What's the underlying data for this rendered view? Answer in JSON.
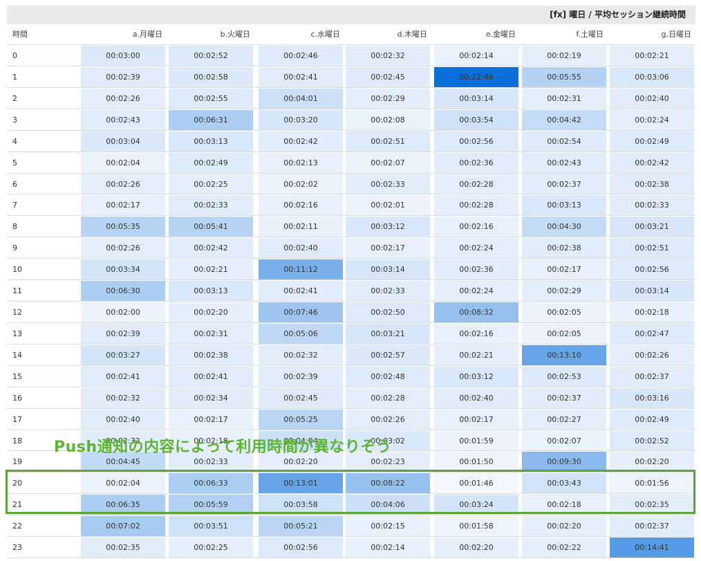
{
  "title": "[fx] 曜日 / 平均セッション継続時間",
  "annotation": "Push通知の内容によって利用時間が異なりそう",
  "colors": {
    "max": "#0a6fd9",
    "min": "#f3f7fd",
    "grid": "#dcdcdc",
    "annotation": "#5ba33a"
  },
  "chart_data": {
    "type": "heatmap",
    "row_header": "時間",
    "columns": [
      "a.月曜日",
      "b.火曜日",
      "c.水曜日",
      "d.木曜日",
      "e.金曜日",
      "f.土曜日",
      "g.日曜日"
    ],
    "rows": [
      {
        "hour": "0",
        "values": [
          "00:03:00",
          "00:02:52",
          "00:02:46",
          "00:02:32",
          "00:02:14",
          "00:02:19",
          "00:02:21"
        ]
      },
      {
        "hour": "1",
        "values": [
          "00:02:39",
          "00:02:58",
          "00:02:41",
          "00:02:45",
          "00:22:46",
          "00:05:55",
          "00:03:06"
        ]
      },
      {
        "hour": "2",
        "values": [
          "00:02:26",
          "00:02:55",
          "00:04:01",
          "00:02:29",
          "00:03:14",
          "00:02:31",
          "00:02:40"
        ]
      },
      {
        "hour": "3",
        "values": [
          "00:02:43",
          "00:06:31",
          "00:03:20",
          "00:02:08",
          "00:03:54",
          "00:04:42",
          "00:02:24"
        ]
      },
      {
        "hour": "4",
        "values": [
          "00:03:04",
          "00:03:13",
          "00:02:42",
          "00:02:51",
          "00:02:56",
          "00:02:54",
          "00:02:49"
        ]
      },
      {
        "hour": "5",
        "values": [
          "00:02:04",
          "00:02:49",
          "00:02:13",
          "00:02:07",
          "00:02:36",
          "00:02:43",
          "00:02:42"
        ]
      },
      {
        "hour": "6",
        "values": [
          "00:02:26",
          "00:02:25",
          "00:02:02",
          "00:02:33",
          "00:02:28",
          "00:02:37",
          "00:02:38"
        ]
      },
      {
        "hour": "7",
        "values": [
          "00:02:17",
          "00:02:33",
          "00:02:16",
          "00:02:01",
          "00:02:28",
          "00:03:13",
          "00:02:33"
        ]
      },
      {
        "hour": "8",
        "values": [
          "00:05:35",
          "00:05:41",
          "00:02:11",
          "00:03:12",
          "00:02:16",
          "00:04:30",
          "00:03:21"
        ]
      },
      {
        "hour": "9",
        "values": [
          "00:02:26",
          "00:02:42",
          "00:02:40",
          "00:02:17",
          "00:02:24",
          "00:02:38",
          "00:02:51"
        ]
      },
      {
        "hour": "10",
        "values": [
          "00:03:34",
          "00:02:21",
          "00:11:12",
          "00:03:14",
          "00:02:36",
          "00:02:17",
          "00:02:56"
        ]
      },
      {
        "hour": "11",
        "values": [
          "00:06:30",
          "00:03:13",
          "00:02:41",
          "00:02:33",
          "00:02:24",
          "00:02:29",
          "00:03:14"
        ]
      },
      {
        "hour": "12",
        "values": [
          "00:02:00",
          "00:02:20",
          "00:07:46",
          "00:02:50",
          "00:08:32",
          "00:02:05",
          "00:02:18"
        ]
      },
      {
        "hour": "13",
        "values": [
          "00:02:39",
          "00:02:31",
          "00:05:06",
          "00:03:21",
          "00:02:16",
          "00:02:05",
          "00:02:47"
        ]
      },
      {
        "hour": "14",
        "values": [
          "00:03:27",
          "00:02:38",
          "00:02:32",
          "00:02:57",
          "00:02:21",
          "00:13:10",
          "00:02:26"
        ]
      },
      {
        "hour": "15",
        "values": [
          "00:02:41",
          "00:02:41",
          "00:02:39",
          "00:02:48",
          "00:03:12",
          "00:02:53",
          "00:02:37"
        ]
      },
      {
        "hour": "16",
        "values": [
          "00:02:32",
          "00:02:34",
          "00:02:45",
          "00:02:28",
          "00:02:40",
          "00:02:37",
          "00:03:16"
        ]
      },
      {
        "hour": "17",
        "values": [
          "00:02:40",
          "00:02:17",
          "00:05:25",
          "00:02:26",
          "00:02:17",
          "00:02:27",
          "00:02:49"
        ]
      },
      {
        "hour": "18",
        "values": [
          "00:02:32",
          "00:02:18",
          "00:04:04",
          "00:03:02",
          "00:01:59",
          "00:02:07",
          "00:02:52"
        ]
      },
      {
        "hour": "19",
        "values": [
          "00:04:45",
          "00:02:33",
          "00:02:20",
          "00:02:23",
          "00:01:50",
          "00:09:30",
          "00:02:20"
        ]
      },
      {
        "hour": "20",
        "values": [
          "00:02:04",
          "00:06:33",
          "00:13:01",
          "00:08:22",
          "00:01:46",
          "00:03:43",
          "00:01:56"
        ]
      },
      {
        "hour": "21",
        "values": [
          "00:06:35",
          "00:05:59",
          "00:03:58",
          "00:04:06",
          "00:03:24",
          "00:02:18",
          "00:02:35"
        ]
      },
      {
        "hour": "22",
        "values": [
          "00:07:02",
          "00:03:51",
          "00:05:21",
          "00:02:15",
          "00:01:58",
          "00:02:20",
          "00:02:37"
        ]
      },
      {
        "hour": "23",
        "values": [
          "00:02:35",
          "00:02:25",
          "00:02:56",
          "00:02:14",
          "00:02:20",
          "00:02:22",
          "00:14:41"
        ]
      }
    ],
    "value_range": [
      "00:01:46",
      "00:22:46"
    ],
    "grid": true
  }
}
